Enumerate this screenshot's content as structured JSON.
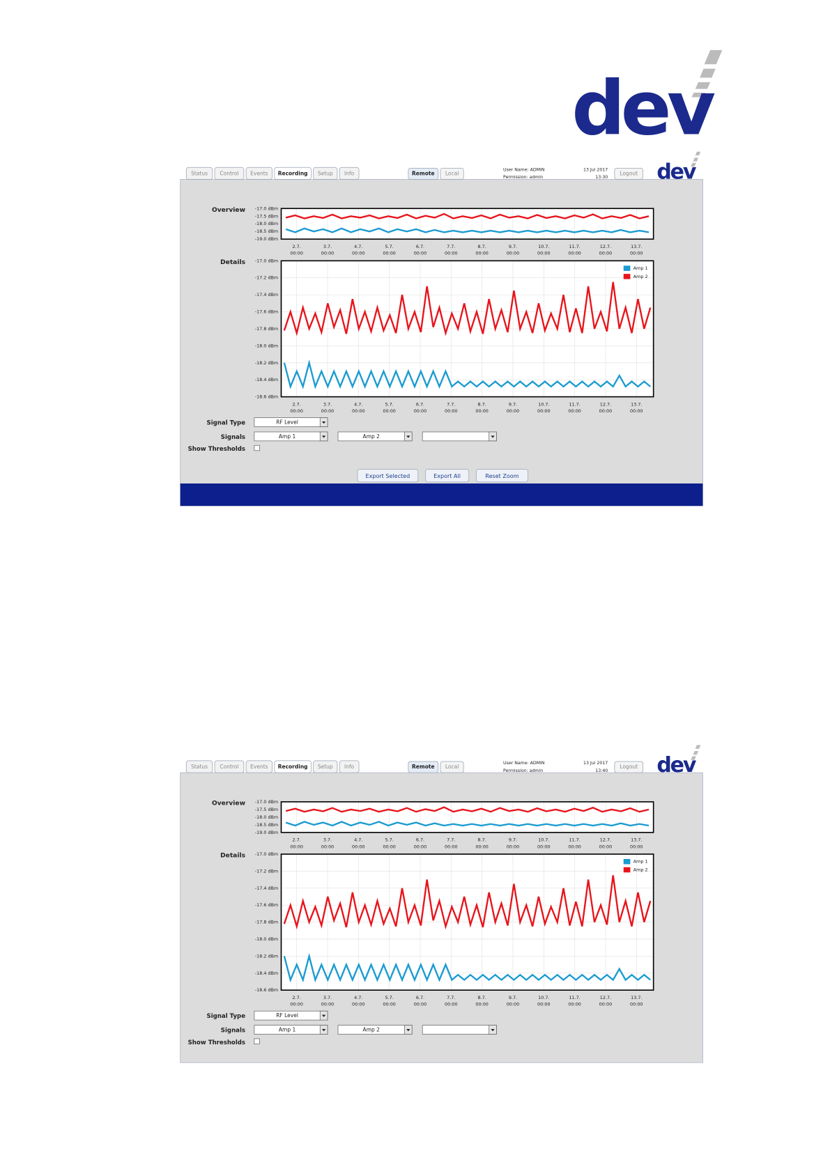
{
  "logo": "dev",
  "screenshots": [
    {
      "tabs": [
        "Status",
        "Control",
        "Events",
        "Recording",
        "Setup",
        "Info"
      ],
      "active_tab": 3,
      "modes": [
        "Remote",
        "Local"
      ],
      "active_mode": 0,
      "user": "User Name: ADMIN",
      "permission": "Permission: admin",
      "date": "13 Jul 2017",
      "time": "13:30",
      "logout": "Logout",
      "logo": "dev",
      "signal_type_label": "Signal Type",
      "signal_type": "RF Level",
      "signals_label": "Signals",
      "signals": [
        "Amp 1",
        "Amp 2"
      ],
      "thresholds_label": "Show Thresholds",
      "buttons": [
        "Export Selected",
        "Export All",
        "Reset Zoom"
      ],
      "footer": true
    },
    {
      "tabs": [
        "Status",
        "Control",
        "Events",
        "Recording",
        "Setup",
        "Info"
      ],
      "active_tab": 3,
      "modes": [
        "Remote",
        "Local"
      ],
      "active_mode": 0,
      "user": "User Name: ADMIN",
      "permission": "Permission: admin",
      "date": "13 Jul 2017",
      "time": "13:40",
      "logout": "Logout",
      "logo": "dev",
      "signal_type_label": "Signal Type",
      "signal_type": "RF Level",
      "signals_label": "Signals",
      "signals": [
        "Amp 1",
        "Amp 2"
      ],
      "thresholds_label": "Show Thresholds",
      "footer": false
    }
  ],
  "chart_data": [
    {
      "type": "line",
      "title": "Overview",
      "xlim": [
        1.5,
        13.55
      ],
      "ylim": [
        -19.0,
        -17.0
      ],
      "yticks": [
        {
          "value": -17.0,
          "label": "-17.0 dBm"
        },
        {
          "value": -17.5,
          "label": "-17.5 dBm"
        },
        {
          "value": -18.0,
          "label": "-18.0 dBm"
        },
        {
          "value": -18.5,
          "label": "-18.5 dBm"
        },
        {
          "value": -19.0,
          "label": "-19.0 dBm"
        }
      ],
      "xticks": [
        {
          "value": 2,
          "label": "2.7."
        },
        {
          "value": 3,
          "label": "3.7."
        },
        {
          "value": 4,
          "label": "4.7."
        },
        {
          "value": 5,
          "label": "5.7."
        },
        {
          "value": 6,
          "label": "6.7."
        },
        {
          "value": 7,
          "label": "7.7."
        },
        {
          "value": 8,
          "label": "8.7."
        },
        {
          "value": 9,
          "label": "9.7."
        },
        {
          "value": 10,
          "label": "10.7."
        },
        {
          "value": 11,
          "label": "11.7."
        },
        {
          "value": 12,
          "label": "12.7."
        },
        {
          "value": 13,
          "label": "13.7."
        }
      ],
      "xtick_times": [
        "00:00",
        "00:00",
        "00:00",
        "00:00",
        "00:00",
        "00:00",
        "00:00",
        "00:00",
        "00:00",
        "00:00",
        "00:00",
        "00:00"
      ],
      "series": [
        {
          "color": "#1a9bd1",
          "values": [
            -18.35,
            -18.55,
            -18.3,
            -18.5,
            -18.35,
            -18.55,
            -18.3,
            -18.55,
            -18.35,
            -18.5,
            -18.3,
            -18.55,
            -18.35,
            -18.5,
            -18.35,
            -18.55,
            -18.4,
            -18.55,
            -18.45,
            -18.55,
            -18.45,
            -18.55,
            -18.45,
            -18.55,
            -18.45,
            -18.55,
            -18.45,
            -18.55,
            -18.45,
            -18.55,
            -18.45,
            -18.55,
            -18.45,
            -18.55,
            -18.45,
            -18.55,
            -18.4,
            -18.55,
            -18.45,
            -18.55
          ]
        },
        {
          "color": "#e8141b",
          "values": [
            -17.6,
            -17.45,
            -17.65,
            -17.5,
            -17.62,
            -17.4,
            -17.65,
            -17.5,
            -17.6,
            -17.45,
            -17.65,
            -17.5,
            -17.62,
            -17.4,
            -17.65,
            -17.48,
            -17.6,
            -17.35,
            -17.65,
            -17.5,
            -17.62,
            -17.45,
            -17.65,
            -17.4,
            -17.6,
            -17.5,
            -17.65,
            -17.42,
            -17.62,
            -17.5,
            -17.65,
            -17.45,
            -17.6,
            -17.38,
            -17.65,
            -17.5,
            -17.62,
            -17.42,
            -17.65,
            -17.5
          ]
        }
      ]
    },
    {
      "type": "line",
      "title": "Details",
      "xlim": [
        1.5,
        13.55
      ],
      "ylim": [
        -18.6,
        -17.0
      ],
      "grid": true,
      "legend": "upper right",
      "yticks": [
        {
          "value": -17.0,
          "label": "-17.0 dBm"
        },
        {
          "value": -17.2,
          "label": "-17.2 dBm"
        },
        {
          "value": -17.4,
          "label": "-17.4 dBm"
        },
        {
          "value": -17.6,
          "label": "-17.6 dBm"
        },
        {
          "value": -17.8,
          "label": "-17.8 dBm"
        },
        {
          "value": -18.0,
          "label": "-18.0 dBm"
        },
        {
          "value": -18.2,
          "label": "-18.2 dBm"
        },
        {
          "value": -18.4,
          "label": "-18.4 dBm"
        },
        {
          "value": -18.6,
          "label": "-18.6 dBm"
        }
      ],
      "xticks": [
        {
          "value": 2,
          "label": "2.7."
        },
        {
          "value": 3,
          "label": "3.7."
        },
        {
          "value": 4,
          "label": "4.7."
        },
        {
          "value": 5,
          "label": "5.7."
        },
        {
          "value": 6,
          "label": "6.7."
        },
        {
          "value": 7,
          "label": "7.7."
        },
        {
          "value": 8,
          "label": "8.7."
        },
        {
          "value": 9,
          "label": "9.7."
        },
        {
          "value": 10,
          "label": "10.7."
        },
        {
          "value": 11,
          "label": "11.7."
        },
        {
          "value": 12,
          "label": "12.7."
        },
        {
          "value": 13,
          "label": "13.7."
        }
      ],
      "xtick_times": [
        "00:00",
        "00:00",
        "00:00",
        "00:00",
        "00:00",
        "00:00",
        "00:00",
        "00:00",
        "00:00",
        "00:00",
        "00:00",
        "00:00"
      ],
      "series": [
        {
          "name": "Amp 1",
          "color": "#1a9bd1",
          "values": [
            -18.2,
            -18.48,
            -18.3,
            -18.48,
            -18.2,
            -18.48,
            -18.3,
            -18.48,
            -18.3,
            -18.48,
            -18.3,
            -18.48,
            -18.3,
            -18.48,
            -18.3,
            -18.48,
            -18.3,
            -18.48,
            -18.3,
            -18.48,
            -18.3,
            -18.48,
            -18.3,
            -18.48,
            -18.3,
            -18.48,
            -18.3,
            -18.48,
            -18.42,
            -18.48,
            -18.42,
            -18.48,
            -18.42,
            -18.48,
            -18.42,
            -18.48,
            -18.42,
            -18.48,
            -18.42,
            -18.48,
            -18.42,
            -18.48,
            -18.42,
            -18.48,
            -18.42,
            -18.48,
            -18.42,
            -18.48,
            -18.42,
            -18.48,
            -18.42,
            -18.48,
            -18.42,
            -18.48,
            -18.35,
            -18.48,
            -18.42,
            -18.48,
            -18.42,
            -18.48
          ]
        },
        {
          "name": "Amp 2",
          "color": "#e8141b",
          "values": [
            -17.82,
            -17.6,
            -17.85,
            -17.55,
            -17.8,
            -17.62,
            -17.84,
            -17.5,
            -17.78,
            -17.58,
            -17.86,
            -17.45,
            -17.8,
            -17.6,
            -17.83,
            -17.55,
            -17.82,
            -17.64,
            -17.85,
            -17.4,
            -17.8,
            -17.6,
            -17.84,
            -17.3,
            -17.78,
            -17.55,
            -17.85,
            -17.62,
            -17.8,
            -17.5,
            -17.83,
            -17.6,
            -17.86,
            -17.45,
            -17.8,
            -17.58,
            -17.84,
            -17.35,
            -17.8,
            -17.6,
            -17.85,
            -17.5,
            -17.82,
            -17.62,
            -17.8,
            -17.4,
            -17.84,
            -17.56,
            -17.85,
            -17.3,
            -17.8,
            -17.6,
            -17.83,
            -17.25,
            -17.8,
            -17.55,
            -17.85,
            -17.45,
            -17.8,
            -17.55
          ]
        }
      ]
    }
  ]
}
